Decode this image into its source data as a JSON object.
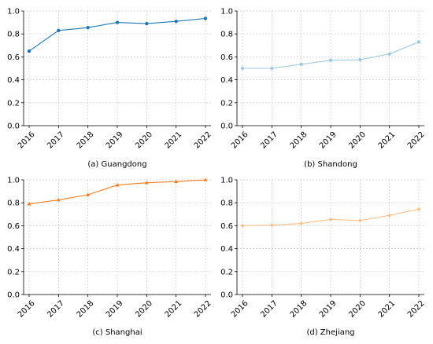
{
  "chart_data": [
    {
      "type": "line",
      "caption": "(a) Guangdong",
      "x": [
        "2016",
        "2017",
        "2018",
        "2019",
        "2020",
        "2021",
        "2022"
      ],
      "values": [
        0.65,
        0.83,
        0.855,
        0.9,
        0.89,
        0.91,
        0.935
      ],
      "ylim": [
        0,
        1.0
      ],
      "yticks": [
        "0.0",
        "0.2",
        "0.4",
        "0.6",
        "0.8",
        "1.0"
      ],
      "color": "#1f77b4",
      "grid": "dashed",
      "marker": "circle"
    },
    {
      "type": "line",
      "caption": "(b) Shandong",
      "x": [
        "2016",
        "2017",
        "2018",
        "2019",
        "2020",
        "2021",
        "2022"
      ],
      "values": [
        0.5,
        0.5,
        0.535,
        0.57,
        0.575,
        0.625,
        0.73
      ],
      "ylim": [
        0,
        1.0
      ],
      "yticks": [
        "0.0",
        "0.2",
        "0.4",
        "0.6",
        "0.8",
        "1.0"
      ],
      "color": "#9ecae1",
      "grid": "dashed",
      "marker": "circle"
    },
    {
      "type": "line",
      "caption": "(c) Shanghai",
      "x": [
        "2016",
        "2017",
        "2018",
        "2019",
        "2020",
        "2021",
        "2022"
      ],
      "values": [
        0.79,
        0.825,
        0.87,
        0.955,
        0.975,
        0.985,
        1.0
      ],
      "ylim": [
        0,
        1.0
      ],
      "yticks": [
        "0.0",
        "0.2",
        "0.4",
        "0.6",
        "0.8",
        "1.0"
      ],
      "color": "#f57c1f",
      "grid": "dashed",
      "marker": "triangle"
    },
    {
      "type": "line",
      "caption": "(d) Zhejiang",
      "x": [
        "2016",
        "2017",
        "2018",
        "2019",
        "2020",
        "2021",
        "2022"
      ],
      "values": [
        0.6,
        0.605,
        0.62,
        0.655,
        0.645,
        0.69,
        0.745
      ],
      "ylim": [
        0,
        1.0
      ],
      "yticks": [
        "0.0",
        "0.2",
        "0.4",
        "0.6",
        "0.8",
        "1.0"
      ],
      "color": "#fdbe85",
      "grid": "dashed",
      "marker": "diamond"
    }
  ]
}
